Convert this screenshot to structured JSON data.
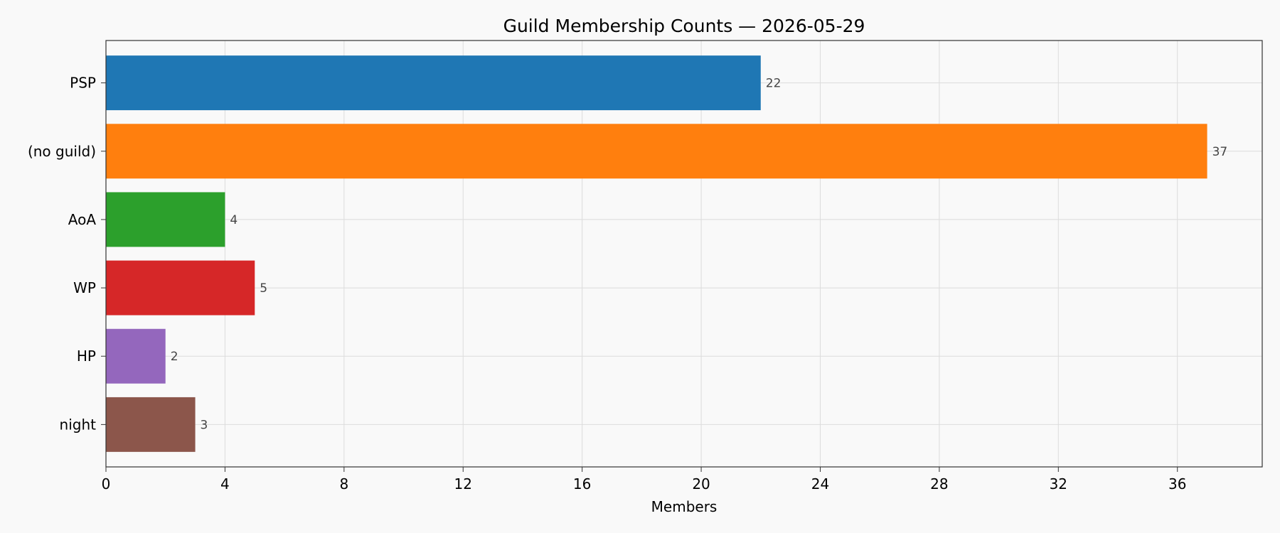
{
  "chart_data": {
    "type": "bar",
    "orientation": "horizontal",
    "title": "Guild Membership Counts — 2026-05-29",
    "xlabel": "Members",
    "ylabel": "",
    "categories": [
      "PSP",
      "(no guild)",
      "AoA",
      "WP",
      "HP",
      "night"
    ],
    "values": [
      22,
      37,
      4,
      5,
      2,
      3
    ],
    "colors": [
      "#1f77b4",
      "#ff7f0e",
      "#2ca02c",
      "#d62728",
      "#9467bd",
      "#8c564b"
    ],
    "xlim": [
      0,
      38.85
    ],
    "xticks": [
      0,
      4,
      8,
      12,
      16,
      20,
      24,
      28,
      32,
      36
    ],
    "grid": true,
    "legend": "none"
  }
}
